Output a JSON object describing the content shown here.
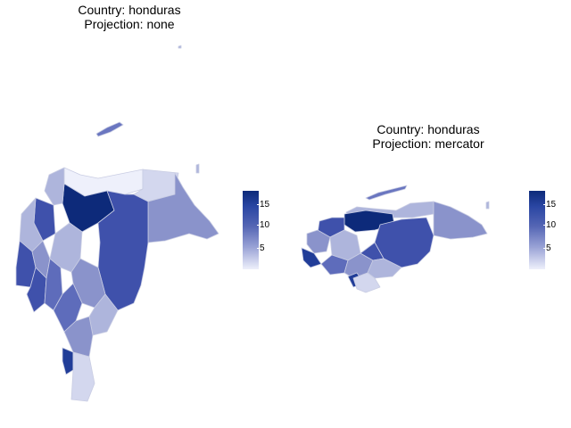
{
  "panels": [
    {
      "country_label": "Country: honduras",
      "projection_label": "Projection: none"
    },
    {
      "country_label": "Country: honduras",
      "projection_label": "Projection: mercator"
    }
  ],
  "legend": {
    "ticks": [
      "15",
      "10",
      "5"
    ],
    "color_low": "#eef0fb",
    "color_high": "#0d2a7a"
  },
  "colors": {
    "region_border": "#c9cde3",
    "palette": [
      "#eef0fb",
      "#d3d7ee",
      "#aeb5dc",
      "#8a93cb",
      "#5e6cbb",
      "#3f51ab",
      "#213d98",
      "#0d2a7a"
    ]
  }
}
